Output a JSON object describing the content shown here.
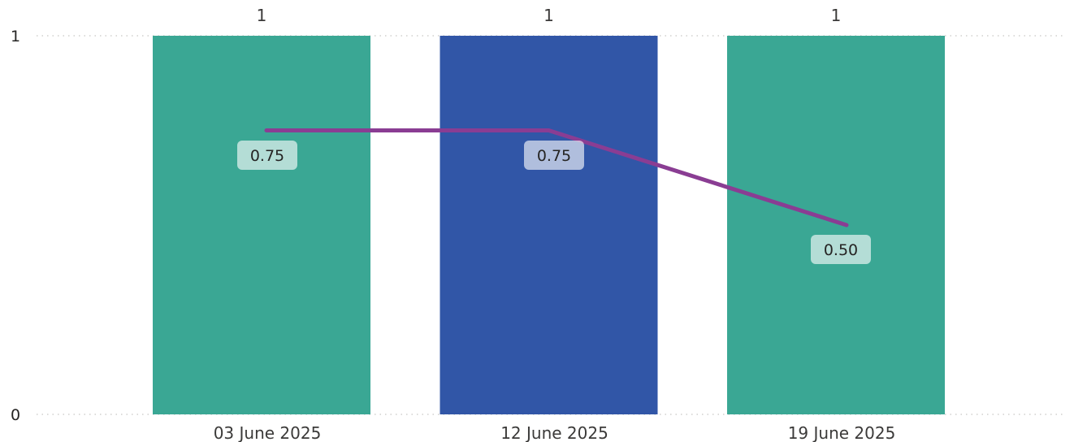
{
  "chart_data": {
    "type": "bar",
    "title": "",
    "xlabel": "",
    "ylabel": "",
    "ylim": [
      0,
      1
    ],
    "y_ticks": [
      "0",
      "1"
    ],
    "grid": true,
    "categories": [
      "03 June 2025",
      "12 June 2025",
      "19 June 2025"
    ],
    "bar_series": {
      "values": [
        1,
        1,
        1
      ],
      "value_labels": [
        "1",
        "1",
        "1"
      ],
      "colors": [
        "#3aa794",
        "#3156a7",
        "#3aa794"
      ]
    },
    "line_series": {
      "values": [
        0.75,
        0.75,
        0.5
      ],
      "value_labels": [
        "0.75",
        "0.75",
        "0.50"
      ],
      "color": "#8a3d93"
    }
  }
}
